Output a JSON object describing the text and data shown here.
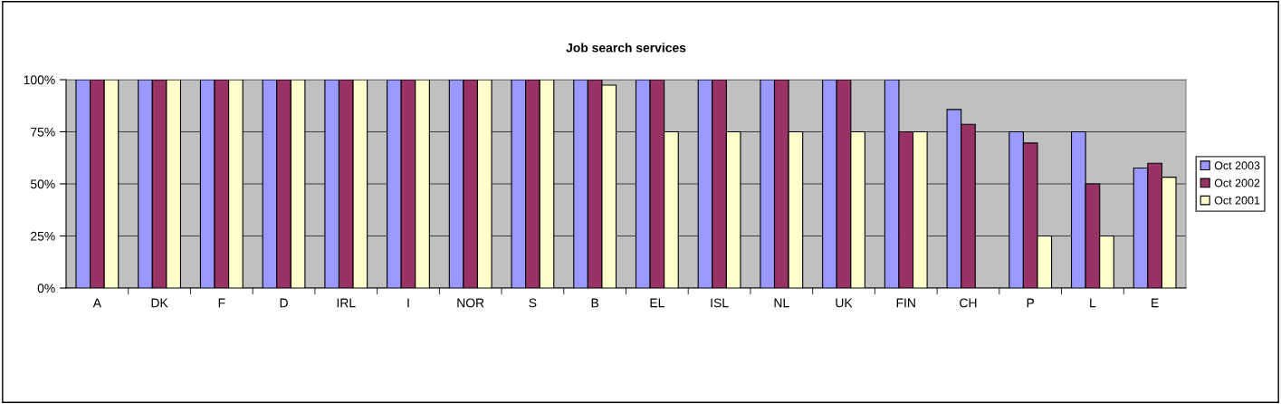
{
  "chart_data": {
    "type": "bar",
    "title": "Job search services",
    "categories": [
      "A",
      "DK",
      "F",
      "D",
      "IRL",
      "I",
      "NOR",
      "S",
      "B",
      "EL",
      "ISL",
      "NL",
      "UK",
      "FIN",
      "CH",
      "P",
      "L",
      "E"
    ],
    "series": [
      {
        "name": "Oct 2003",
        "color": "#9999ff",
        "values": [
          100,
          100,
          100,
          100,
          100,
          100,
          100,
          100,
          100,
          100,
          100,
          100,
          100,
          100,
          85.7,
          75,
          75,
          57.6
        ]
      },
      {
        "name": "Oct 2002",
        "color": "#993366",
        "values": [
          100,
          100,
          100,
          100,
          100,
          100,
          100,
          100,
          100,
          100,
          100,
          100,
          100,
          75,
          78.6,
          69.6,
          50,
          59.9
        ]
      },
      {
        "name": "Oct 2001",
        "color": "#ffffcc",
        "values": [
          100,
          100,
          100,
          100,
          100,
          100,
          100,
          100,
          97.4,
          75,
          75,
          75,
          75,
          75,
          null,
          25,
          25,
          53.2
        ]
      }
    ],
    "ylim": [
      0,
      100
    ],
    "yticks": [
      {
        "value": 0,
        "label": "0%"
      },
      {
        "value": 25,
        "label": "25%"
      },
      {
        "value": 50,
        "label": "50%"
      },
      {
        "value": 75,
        "label": "75%"
      },
      {
        "value": 100,
        "label": "100%"
      }
    ],
    "grid": "y",
    "legend": "right"
  }
}
